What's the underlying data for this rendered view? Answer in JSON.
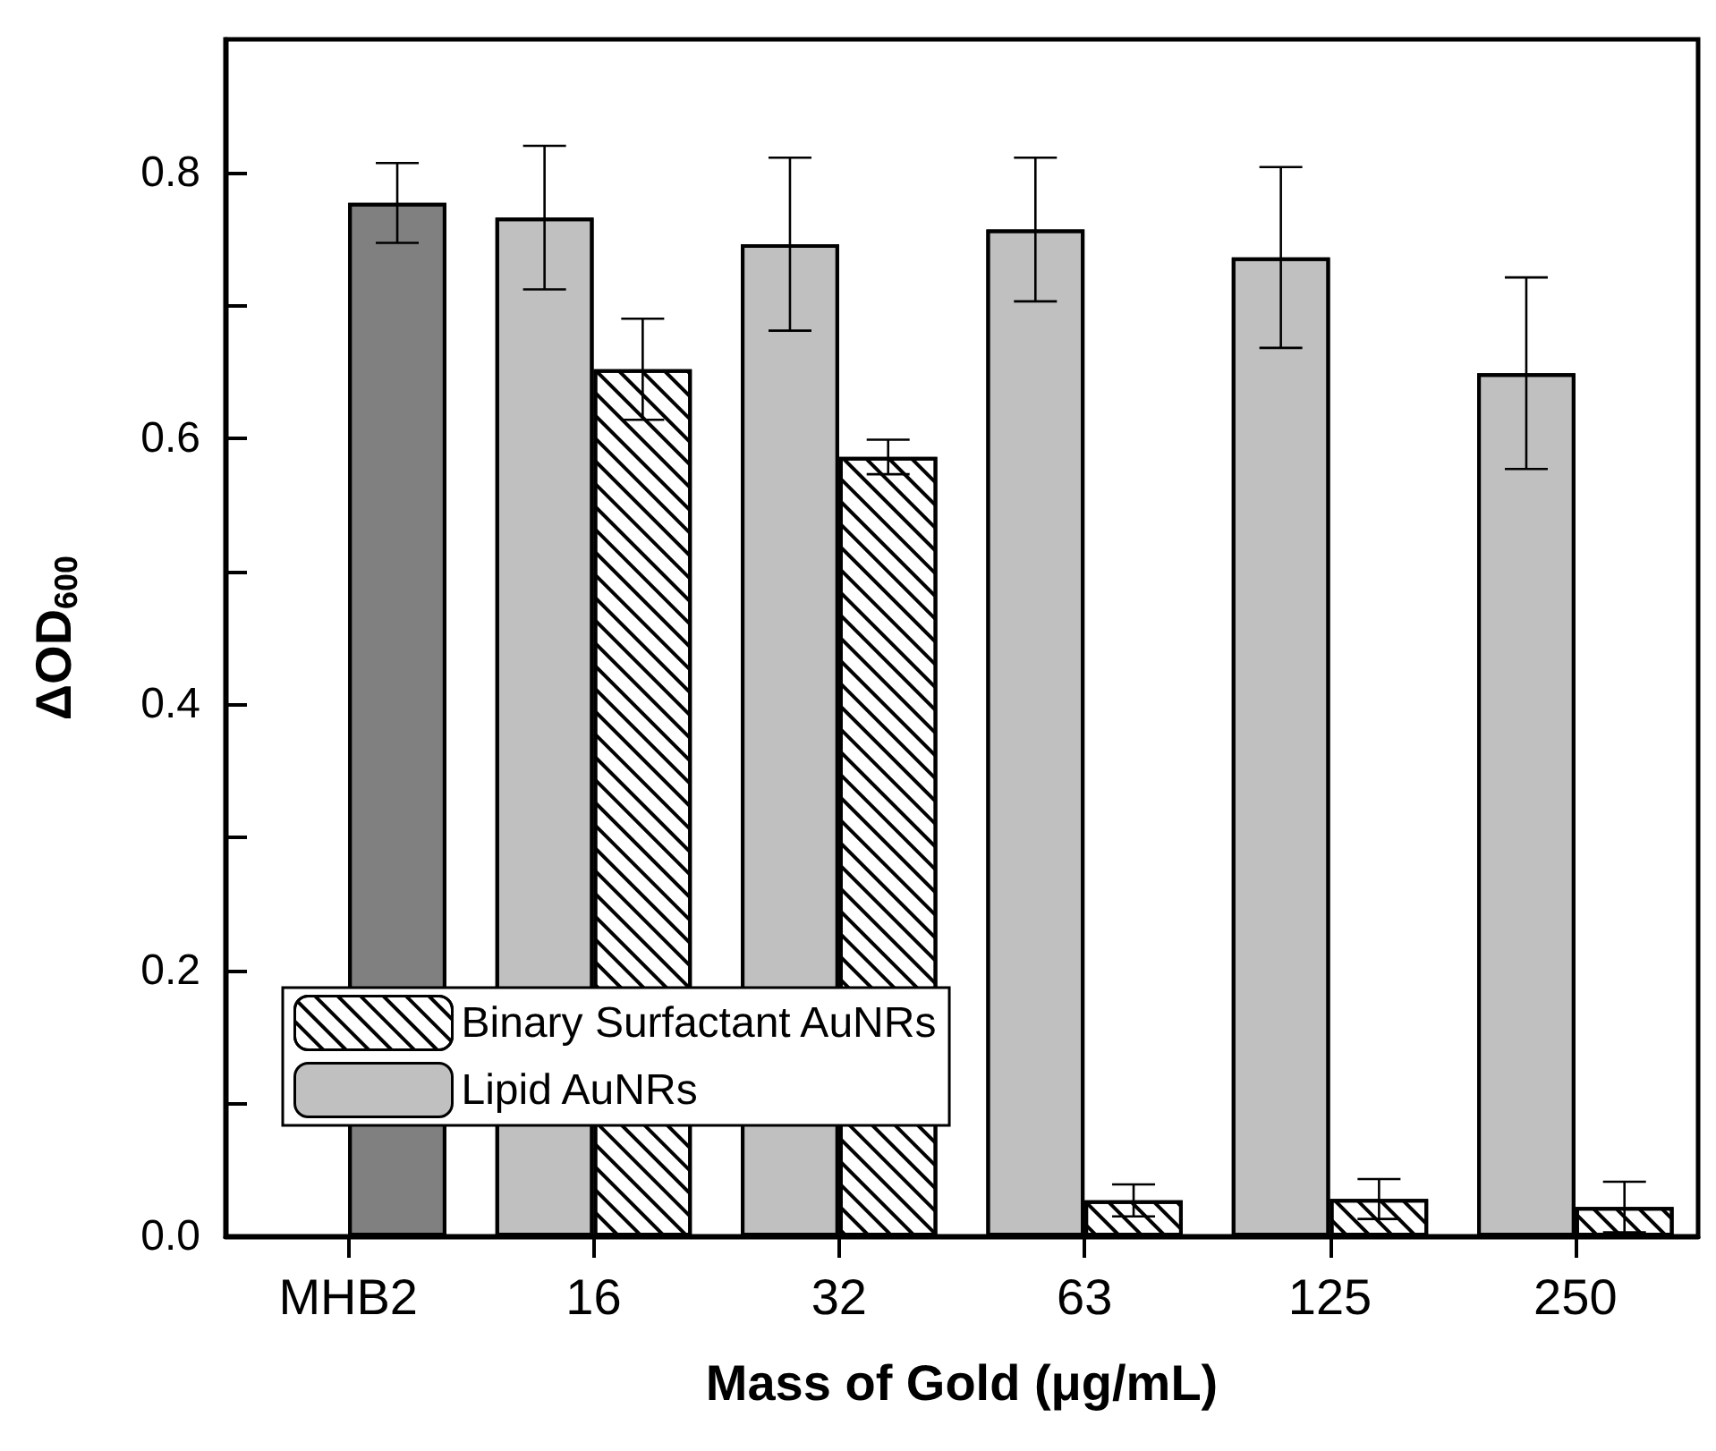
{
  "chart_data": {
    "type": "bar",
    "xlabel": "Mass of Gold (μg/mL)",
    "ylabel": "ΔOD$_{600}$",
    "categories": [
      "MHB2",
      "16",
      "32",
      "63",
      "125",
      "250"
    ],
    "series": [
      {
        "name": "Lipid AuNRs",
        "color": "#c0c0c0",
        "values": [
          null,
          0.766,
          0.746,
          0.757,
          0.736,
          0.649
        ],
        "errors": [
          null,
          0.054,
          0.065,
          0.054,
          0.068,
          0.072
        ]
      },
      {
        "name": "Binary Surfactant AuNRs",
        "color": "#ffffff",
        "colors": [
          "#808080",
          "#ffffff",
          "#ffffff",
          "#ffffff",
          "#ffffff",
          "#ffffff"
        ],
        "values": [
          0.777,
          0.652,
          0.586,
          0.027,
          0.028,
          0.022
        ],
        "errors": [
          0.03,
          0.038,
          0.013,
          0.012,
          0.015,
          0.019
        ]
      }
    ],
    "ylim": [
      0,
      0.9
    ],
    "yticks": [
      {
        "value": 0,
        "label": "0.0"
      },
      {
        "value": 0.1,
        "label": null
      },
      0.2,
      {
        "value": 0.3,
        "label": null
      },
      0.4,
      {
        "value": 0.5,
        "label": null
      },
      0.6,
      {
        "value": 0.7,
        "label": null
      },
      0.8
    ],
    "legend": "bottom left",
    "grid": false
  }
}
